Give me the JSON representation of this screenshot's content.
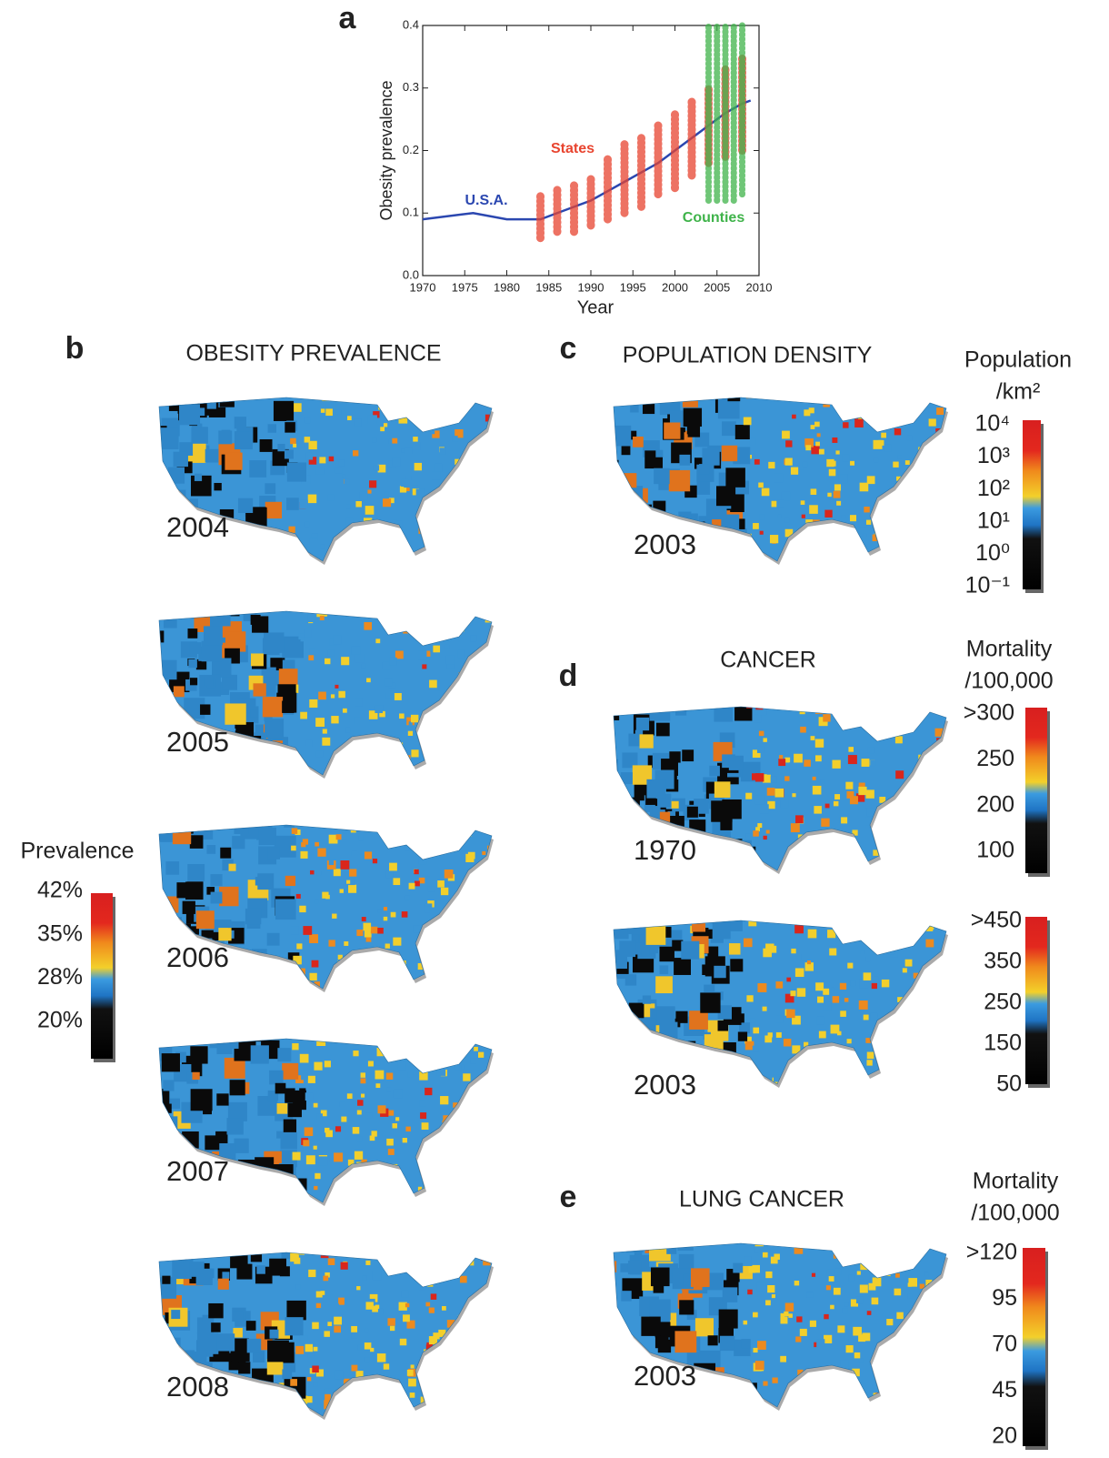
{
  "chart_data": {
    "type": "line",
    "panel": "a",
    "xlabel": "Year",
    "ylabel": "Obesity prevalence",
    "xlim": [
      1970,
      2010
    ],
    "xticks": [
      1970,
      1975,
      1980,
      1985,
      1990,
      1995,
      2000,
      2005,
      2010
    ],
    "ylim": [
      0,
      0.4
    ],
    "yticks": [
      {
        "value": 0,
        "label": "0.0"
      },
      0.1,
      0.2,
      0.3,
      0.4
    ],
    "x": [
      1970,
      1976,
      1980,
      1984,
      1986,
      1988,
      1990,
      1992,
      1994,
      1996,
      1998,
      2000,
      2002,
      2004,
      2006,
      2008,
      2009
    ],
    "series": [
      {
        "name": "U.S.A.",
        "color": "#2b47b0",
        "values": [
          0.09,
          0.1,
          0.09,
          0.09,
          0.1,
          0.11,
          0.12,
          0.135,
          0.15,
          0.165,
          0.18,
          0.2,
          0.22,
          0.24,
          0.26,
          0.275,
          0.28
        ]
      },
      {
        "name": "States",
        "color": "#e8442f",
        "x": [
          1984,
          1986,
          1988,
          1990,
          1992,
          1994,
          1996,
          1998,
          2000,
          2002,
          2004,
          2006,
          2008
        ],
        "low": [
          0.06,
          0.07,
          0.07,
          0.08,
          0.09,
          0.1,
          0.11,
          0.13,
          0.14,
          0.16,
          0.18,
          0.19,
          0.2
        ],
        "high": [
          0.13,
          0.14,
          0.15,
          0.16,
          0.19,
          0.21,
          0.22,
          0.24,
          0.26,
          0.28,
          0.3,
          0.33,
          0.35
        ]
      },
      {
        "name": "Counties",
        "color": "#3fb34a",
        "x": [
          2004,
          2005,
          2006,
          2007,
          2008
        ],
        "low": [
          0.12,
          0.12,
          0.12,
          0.12,
          0.13
        ],
        "high": [
          0.4,
          0.4,
          0.4,
          0.4,
          0.4
        ]
      }
    ]
  },
  "panels": [
    {
      "letter": "b",
      "title": "OBESITY PREVALENCE",
      "maps": [
        "2004",
        "2005",
        "2006",
        "2007",
        "2008"
      ]
    },
    {
      "letter": "c",
      "title": "POPULATION DENSITY",
      "maps": [
        "2003"
      ]
    },
    {
      "letter": "d",
      "title": "CANCER",
      "maps": [
        "1970",
        "2003"
      ]
    },
    {
      "letter": "e",
      "title": "LUNG CANCER",
      "maps": [
        "2003"
      ]
    }
  ],
  "colorbars": [
    {
      "title": [
        "Prevalence"
      ],
      "labels": [
        "42%",
        "35%",
        "28%",
        "20%"
      ]
    },
    {
      "title": [
        "Population",
        "/km²"
      ],
      "labels": [
        "10⁴",
        "10³",
        "10²",
        "10¹",
        "10⁰",
        "10⁻¹"
      ]
    },
    {
      "title": [
        "Mortality",
        "/100,000"
      ],
      "labels": [
        ">300",
        "250",
        "200",
        "100"
      ]
    },
    {
      "title": [],
      "labels": [
        ">450",
        "350",
        "250",
        "150",
        "50"
      ]
    },
    {
      "title": [
        "Mortality",
        "/100,000"
      ],
      "labels": [
        ">120",
        "95",
        "70",
        "45",
        "20"
      ]
    }
  ]
}
